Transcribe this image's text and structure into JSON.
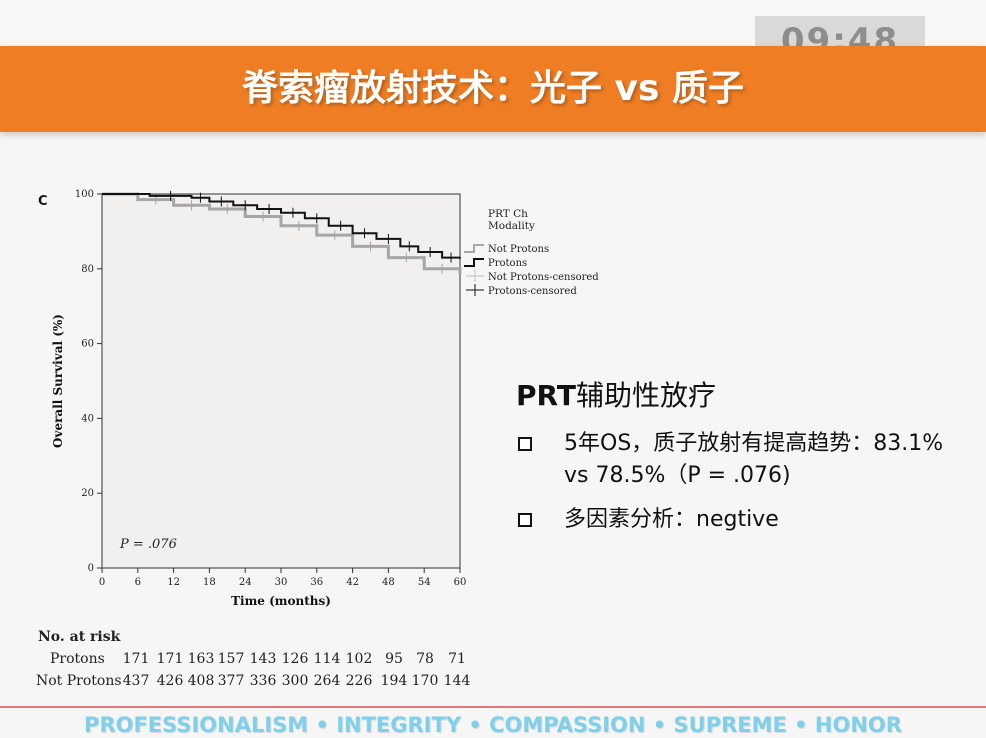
{
  "timer": "09:48",
  "slide_title": "脊索瘤放射技术：光子 vs 质子",
  "chart_data": {
    "type": "line",
    "panel_label": "C",
    "xlabel": "Time (months)",
    "ylabel": "Overall Survival (%)",
    "xlim": [
      0,
      60
    ],
    "ylim": [
      0,
      100
    ],
    "x_ticks": [
      0,
      6,
      12,
      18,
      24,
      30,
      36,
      42,
      48,
      54,
      60
    ],
    "y_ticks": [
      0,
      20,
      40,
      60,
      80,
      100
    ],
    "annotation": "P = .076",
    "legend_title": "PRT Ch Modality",
    "legend_placement": "right",
    "legend": [
      "Not Protons",
      "Protons",
      "Not Protons-censored",
      "Protons-censored"
    ],
    "series": [
      {
        "name": "Protons",
        "color": "#111111",
        "x": [
          0,
          8,
          15,
          18,
          22,
          26,
          30,
          34,
          38,
          42,
          46,
          50,
          53,
          57,
          60
        ],
        "y": [
          100,
          99.5,
          99,
          98,
          97,
          96,
          95,
          93.5,
          91.5,
          89.5,
          88,
          86,
          84.5,
          83,
          83.1
        ]
      },
      {
        "name": "Not Protons",
        "color": "#a6a6a6",
        "x": [
          0,
          6,
          12,
          18,
          24,
          30,
          36,
          42,
          48,
          54,
          60
        ],
        "y": [
          100,
          98.5,
          97,
          96,
          94,
          91.5,
          89,
          86,
          83,
          80,
          78.5
        ]
      }
    ]
  },
  "risk_table": {
    "title": "No. at risk",
    "rows": [
      {
        "label": "Protons",
        "values": [
          "171",
          "171",
          "163",
          "157",
          "143",
          "126",
          "114",
          "102",
          "95",
          "78",
          "71"
        ]
      },
      {
        "label": "Not Protons",
        "values": [
          "437",
          "426",
          "408",
          "377",
          "336",
          "300",
          "264",
          "226",
          "194",
          "170",
          "144"
        ]
      }
    ]
  },
  "panel": {
    "title_bold": "PRT",
    "title_rest": "辅助性放疗",
    "bullets": [
      "5年OS，质子放射有提高趋势：83.1% vs 78.5%（P = .076)",
      "多因素分析：negtive"
    ]
  },
  "footer": "PROFESSIONALISM • INTEGRITY • COMPASSION • SUPREME • HONOR",
  "colors": {
    "title_bar": "#ef7d23",
    "footer_text": "#7fd0e8",
    "plot_bg": "#f2f0ee"
  }
}
